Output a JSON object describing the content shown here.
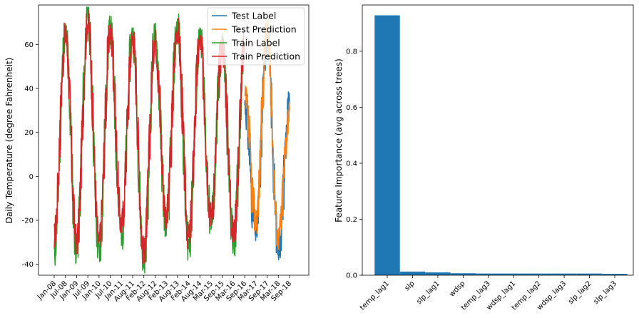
{
  "chart_data": [
    {
      "type": "line",
      "title": "",
      "xlabel": "",
      "ylabel": "Daily Temperature (degree Fahrenheit)",
      "ylim": [
        -45,
        78
      ],
      "yticks": [
        -40,
        -20,
        0,
        20,
        40,
        60
      ],
      "grid": false,
      "legend": "top-right",
      "x_tick_labels": [
        "Jan-08",
        "Jul-08",
        "Jan-09",
        "Jul-09",
        "Jan-10",
        "Jul-10",
        "Jan-11",
        "Aug-11",
        "Feb-12",
        "Aug-12",
        "Feb-13",
        "Aug-13",
        "Feb-14",
        "Aug-14",
        "Mar-15",
        "Sep-15",
        "Mar-16",
        "Sep-16",
        "Mar-17",
        "Sep-17",
        "Mar-18",
        "Sep-18"
      ],
      "series": [
        {
          "name": "Test Label",
          "color": "#1f77b4",
          "x": [
            "Sep-16",
            "Mar-17",
            "Sep-17",
            "Mar-18",
            "Sep-18"
          ],
          "values": [
            33,
            -25,
            63,
            -32,
            33
          ]
        },
        {
          "name": "Test Prediction",
          "color": "#ff7f0e",
          "x": [
            "Sep-16",
            "Mar-17",
            "Sep-17",
            "Mar-18",
            "Sep-18"
          ],
          "values": [
            35,
            -20,
            66,
            -28,
            30
          ]
        },
        {
          "name": "Train Label",
          "color": "#2ca02c",
          "x": [
            "Jan-08",
            "Jul-08",
            "Jan-09",
            "Jul-09",
            "Jan-10",
            "Jul-10",
            "Jan-11",
            "Aug-11",
            "Feb-12",
            "Aug-12",
            "Feb-13",
            "Aug-13",
            "Feb-14",
            "Aug-14",
            "Mar-15",
            "Sep-15",
            "Mar-16",
            "Sep-16"
          ],
          "values": [
            -35,
            65,
            -33,
            73,
            -35,
            66,
            -26,
            64,
            -38,
            64,
            -21,
            68,
            -31,
            62,
            -20,
            60,
            -30,
            61
          ]
        },
        {
          "name": "Train Prediction",
          "color": "#d62728",
          "x": [
            "Jan-08",
            "Jul-08",
            "Jan-09",
            "Jul-09",
            "Jan-10",
            "Jul-10",
            "Jan-11",
            "Aug-11",
            "Feb-12",
            "Aug-12",
            "Feb-13",
            "Aug-13",
            "Feb-14",
            "Aug-14",
            "Mar-15",
            "Sep-15",
            "Mar-16",
            "Sep-16"
          ],
          "values": [
            -27,
            64,
            -30,
            70,
            -30,
            65,
            -22,
            63,
            -34,
            62,
            -18,
            67,
            -28,
            61,
            -17,
            59,
            -26,
            60
          ]
        }
      ]
    },
    {
      "type": "bar",
      "title": "",
      "xlabel": "",
      "ylabel": "Feature Importance (avg across trees)",
      "ylim": [
        0,
        0.965
      ],
      "yticks": [
        "0.0",
        "0.2",
        "0.4",
        "0.6",
        "0.8"
      ],
      "yticks_values": [
        0,
        0.2,
        0.4,
        0.6,
        0.8
      ],
      "grid": false,
      "bar_color": "#1f77b4",
      "categories": [
        "temp_lag1",
        "slp",
        "slp_lag1",
        "wdsp",
        "temp_lag3",
        "wdsp_lag1",
        "temp_lag2",
        "wdsp_lag3",
        "slp_lag2",
        "slp_lag3"
      ],
      "values": [
        0.928,
        0.013,
        0.01,
        0.007,
        0.006,
        0.006,
        0.006,
        0.006,
        0.006,
        0.005
      ]
    }
  ]
}
